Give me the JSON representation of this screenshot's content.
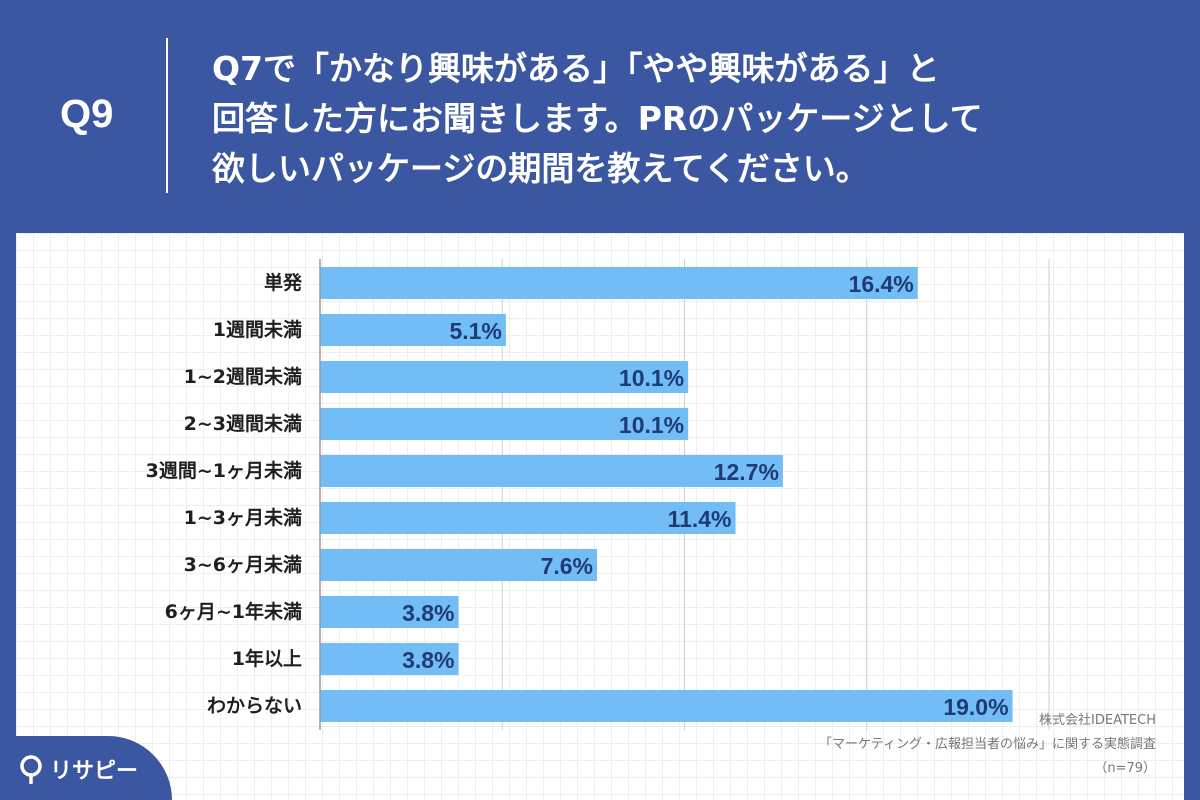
{
  "question": {
    "number": "Q9",
    "lines": [
      "Q7で「かなり興味がある」「やや興味がある」と",
      "回答した方にお聞きします。PRのパッケージとして",
      "欲しいパッケージの期間を教えてください。"
    ]
  },
  "chart_data": {
    "type": "bar",
    "orientation": "horizontal",
    "categories": [
      "単発",
      "1週間未満",
      "1~2週間未満",
      "2~3週間未満",
      "3週間~1ヶ月未満",
      "1~3ヶ月未満",
      "3~6ヶ月未満",
      "6ヶ月~1年未満",
      "1年以上",
      "わからない"
    ],
    "values": [
      16.4,
      5.1,
      10.1,
      10.1,
      12.7,
      11.4,
      7.6,
      3.8,
      3.8,
      19.0
    ],
    "value_labels": [
      "16.4%",
      "5.1%",
      "10.1%",
      "10.1%",
      "12.7%",
      "11.4%",
      "7.6%",
      "3.8%",
      "3.8%",
      "19.0%"
    ],
    "xlim": [
      0,
      20
    ],
    "gridlines": [
      5,
      10,
      15,
      20
    ],
    "bar_color": "#73bdf7",
    "grid": true
  },
  "credit": {
    "company": "株式会社IDEATECH",
    "survey": "「マーケティング・広報担当者の悩み」に関する実態調査",
    "sample": "（n=79）"
  },
  "logo": {
    "text": "リサピー",
    "icon": "pin-icon"
  }
}
